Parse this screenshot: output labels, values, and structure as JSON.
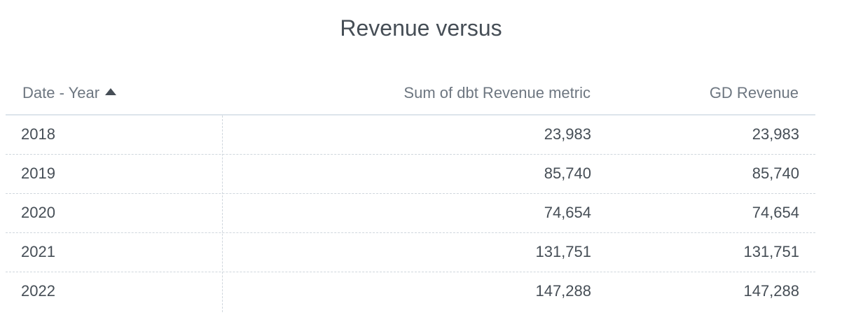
{
  "title": "Revenue versus",
  "table": {
    "columns": [
      {
        "label": "Date - Year",
        "sort": "ascending"
      },
      {
        "label": "Sum of dbt Revenue metric"
      },
      {
        "label": "GD Revenue"
      }
    ],
    "rows": [
      {
        "year": "2018",
        "dbt_revenue": "23,983",
        "gd_revenue": "23,983"
      },
      {
        "year": "2019",
        "dbt_revenue": "85,740",
        "gd_revenue": "85,740"
      },
      {
        "year": "2020",
        "dbt_revenue": "74,654",
        "gd_revenue": "74,654"
      },
      {
        "year": "2021",
        "dbt_revenue": "131,751",
        "gd_revenue": "131,751"
      },
      {
        "year": "2022",
        "dbt_revenue": "147,288",
        "gd_revenue": "147,288"
      }
    ]
  },
  "icons": {
    "sort": "sort-ascending-triangle-icon"
  },
  "colors": {
    "text": "#464e56",
    "header_text": "#6d7680",
    "header_border": "#dde4eb",
    "row_divider": "#cfd6dd"
  }
}
